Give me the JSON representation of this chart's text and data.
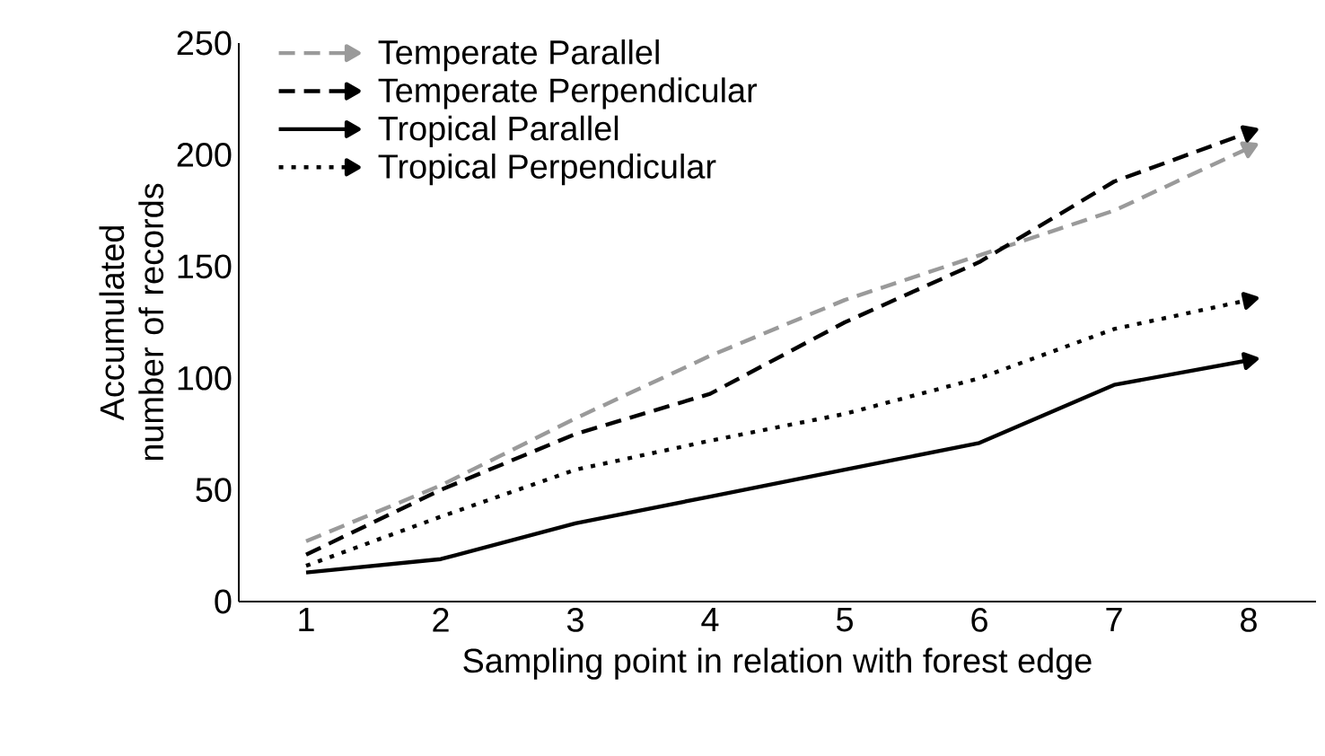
{
  "chart_data": {
    "type": "line",
    "xlabel": "Sampling point in relation with forest edge",
    "ylabel": "Accumulated number of records",
    "x": [
      1,
      2,
      3,
      4,
      5,
      6,
      7,
      8
    ],
    "series": [
      {
        "name": "Temperate Parallel",
        "color": "#9a9a9a",
        "line_style": "dashed",
        "values": [
          27,
          52,
          82,
          110,
          135,
          155,
          175,
          203
        ]
      },
      {
        "name": "Temperate Perpendicular",
        "color": "#000000",
        "line_style": "dashed",
        "values": [
          21,
          50,
          75,
          93,
          125,
          152,
          188,
          210
        ]
      },
      {
        "name": "Tropical Parallel",
        "color": "#000000",
        "line_style": "solid",
        "values": [
          13,
          19,
          35,
          47,
          59,
          71,
          97,
          108
        ]
      },
      {
        "name": "Tropical Perpendicular",
        "color": "#000000",
        "line_style": "dotted",
        "values": [
          16,
          38,
          59,
          72,
          84,
          100,
          122,
          135
        ]
      }
    ],
    "xlim": [
      0.5,
      8.5
    ],
    "xticks": [
      1,
      2,
      3,
      4,
      5,
      6,
      7,
      8
    ],
    "ylim": [
      0,
      250
    ],
    "yticks": [
      0,
      50,
      100,
      150,
      200,
      250
    ],
    "grid": false,
    "legend": "top left"
  }
}
